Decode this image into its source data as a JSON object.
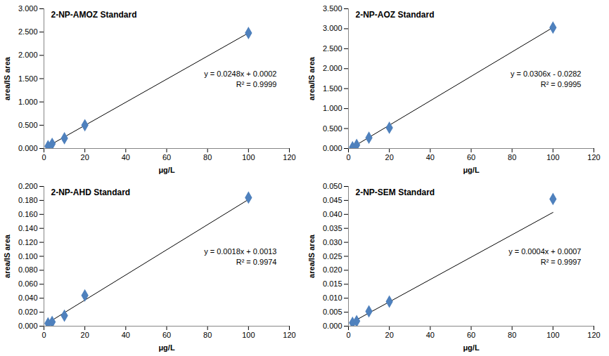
{
  "chart_data": [
    {
      "type": "scatter",
      "title": "2-NP-AMOZ Standard",
      "x_label": "μg/L",
      "y_label": "area/IS area",
      "x": [
        2,
        4,
        10,
        20,
        100
      ],
      "values": [
        0.05,
        0.1,
        0.22,
        0.5,
        2.48
      ],
      "color": "#4f81bd",
      "marker": "diamond",
      "trendline": {
        "slope": 0.0248,
        "intercept": 0.0002,
        "color": "#000000"
      },
      "annotations": [
        "y = 0.0248x + 0.0002",
        "R² = 0.9999"
      ],
      "xlim": [
        0,
        120
      ],
      "xticks": [
        0,
        20,
        40,
        60,
        80,
        100,
        120
      ],
      "ylim": [
        0,
        3
      ],
      "yticks": [
        {
          "value": 0,
          "label": "0.000"
        },
        {
          "value": 0.5,
          "label": "0.500"
        },
        {
          "value": 1,
          "label": "1.000"
        },
        {
          "value": 1.5,
          "label": "1.500"
        },
        {
          "value": 2,
          "label": "2.000"
        },
        {
          "value": 2.5,
          "label": "2.500"
        },
        {
          "value": 3,
          "label": "3.000"
        }
      ],
      "grid": false
    },
    {
      "type": "scatter",
      "title": "2-NP-AOZ Standard",
      "x_label": "μg/L",
      "y_label": "area/IS area",
      "x": [
        2,
        4,
        10,
        20,
        100
      ],
      "values": [
        0.03,
        0.09,
        0.27,
        0.52,
        3.03
      ],
      "color": "#4f81bd",
      "marker": "diamond",
      "trendline": {
        "slope": 0.0306,
        "intercept": -0.0282,
        "color": "#000000"
      },
      "annotations": [
        "y = 0.0306x - 0.0282",
        "R² = 0.9995"
      ],
      "xlim": [
        0,
        120
      ],
      "xticks": [
        0,
        20,
        40,
        60,
        80,
        100,
        120
      ],
      "ylim": [
        0,
        3.5
      ],
      "yticks": [
        {
          "value": 0,
          "label": "0.000"
        },
        {
          "value": 0.5,
          "label": "0.500"
        },
        {
          "value": 1,
          "label": "1.000"
        },
        {
          "value": 1.5,
          "label": "1.500"
        },
        {
          "value": 2,
          "label": "2.000"
        },
        {
          "value": 2.5,
          "label": "2.500"
        },
        {
          "value": 3,
          "label": "3.000"
        },
        {
          "value": 3.5,
          "label": "3.500"
        }
      ],
      "grid": false
    },
    {
      "type": "scatter",
      "title": "2-NP-AHD Standard",
      "x_label": "μg/L",
      "y_label": "area/IS area",
      "x": [
        2,
        4,
        10,
        20,
        100
      ],
      "values": [
        0.004,
        0.006,
        0.015,
        0.044,
        0.184
      ],
      "color": "#4f81bd",
      "marker": "diamond",
      "trendline": {
        "slope": 0.0018,
        "intercept": 0.0013,
        "color": "#000000"
      },
      "annotations": [
        "y = 0.0018x + 0.0013",
        "R² = 0.9974"
      ],
      "xlim": [
        0,
        120
      ],
      "xticks": [
        0,
        20,
        40,
        60,
        80,
        100,
        120
      ],
      "ylim": [
        0,
        0.2
      ],
      "yticks": [
        {
          "value": 0,
          "label": "0.000"
        },
        {
          "value": 0.02,
          "label": "0.020"
        },
        {
          "value": 0.04,
          "label": "0.040"
        },
        {
          "value": 0.06,
          "label": "0.060"
        },
        {
          "value": 0.08,
          "label": "0.080"
        },
        {
          "value": 0.1,
          "label": "0.100"
        },
        {
          "value": 0.12,
          "label": "0.120"
        },
        {
          "value": 0.14,
          "label": "0.140"
        },
        {
          "value": 0.16,
          "label": "0.160"
        },
        {
          "value": 0.18,
          "label": "0.180"
        },
        {
          "value": 0.2,
          "label": "0.200"
        }
      ],
      "grid": false
    },
    {
      "type": "scatter",
      "title": "2-NP-SEM Standard",
      "x_label": "μg/L",
      "y_label": "area/IS area",
      "x": [
        2,
        4,
        10,
        20,
        100
      ],
      "values": [
        0.0012,
        0.0018,
        0.0053,
        0.0088,
        0.0455
      ],
      "color": "#4f81bd",
      "marker": "diamond",
      "trendline": {
        "slope": 0.0004,
        "intercept": 0.0007,
        "color": "#000000"
      },
      "annotations": [
        "y = 0.0004x + 0.0007",
        "R² = 0.9997"
      ],
      "xlim": [
        0,
        120
      ],
      "xticks": [
        0,
        20,
        40,
        60,
        80,
        100,
        120
      ],
      "ylim": [
        0,
        0.05
      ],
      "yticks": [
        {
          "value": 0,
          "label": "0.000"
        },
        {
          "value": 0.005,
          "label": "0.005"
        },
        {
          "value": 0.01,
          "label": "0.010"
        },
        {
          "value": 0.015,
          "label": "0.015"
        },
        {
          "value": 0.02,
          "label": "0.020"
        },
        {
          "value": 0.025,
          "label": "0.025"
        },
        {
          "value": 0.03,
          "label": "0.030"
        },
        {
          "value": 0.035,
          "label": "0.035"
        },
        {
          "value": 0.04,
          "label": "0.040"
        },
        {
          "value": 0.045,
          "label": "0.045"
        },
        {
          "value": 0.05,
          "label": "0.050"
        }
      ],
      "grid": false
    }
  ]
}
